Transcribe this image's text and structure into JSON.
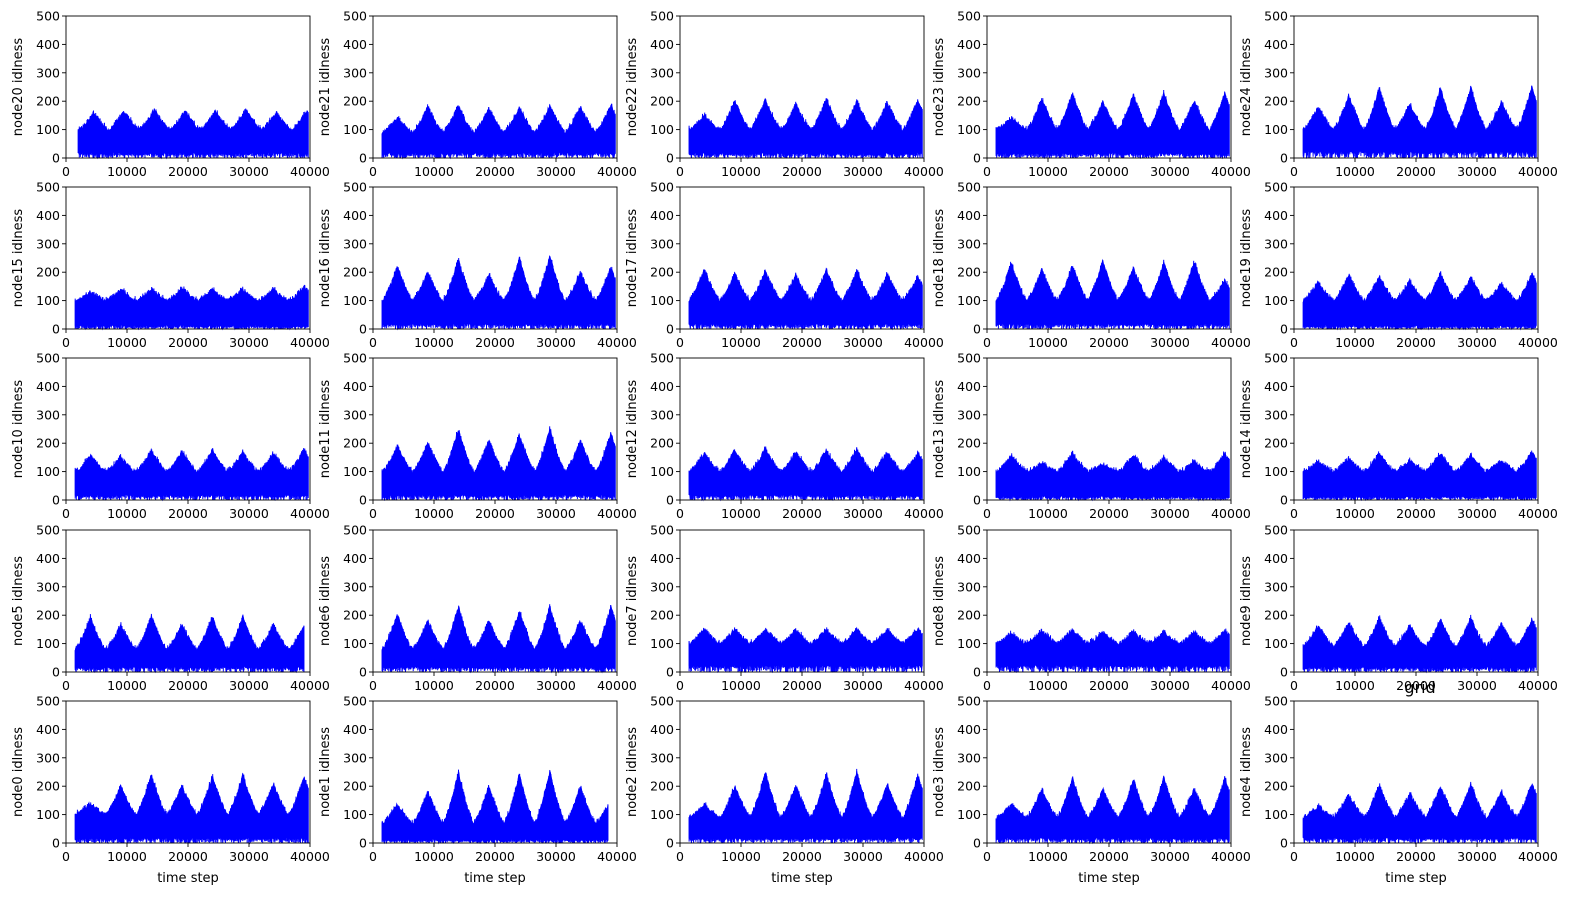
{
  "figure": {
    "rows": 5,
    "cols": 5,
    "overlay_title": "grid",
    "fill_color": "#0000ff",
    "axes_color": "#000000"
  },
  "chart_data": [
    {
      "type": "area",
      "ylabel": "node20 idlness",
      "xlabel": "",
      "xlim": [
        0,
        40000
      ],
      "ylim": [
        0,
        500
      ],
      "xticks": [
        10000,
        20000,
        30000,
        40000
      ],
      "yticks": [
        0,
        100,
        200,
        300,
        400,
        500
      ],
      "x_start": 2000,
      "x_end": 39700,
      "period": 5000,
      "peaks": [
        160,
        165,
        170,
        165,
        165,
        170,
        160,
        165
      ],
      "base_level": 100,
      "low_level": 15
    },
    {
      "type": "area",
      "ylabel": "node21 idlness",
      "xlabel": "",
      "xlim": [
        0,
        40000
      ],
      "ylim": [
        0,
        500
      ],
      "xticks": [
        10000,
        20000,
        30000,
        40000
      ],
      "yticks": [
        0,
        100,
        200,
        300,
        400,
        500
      ],
      "x_start": 1500,
      "x_end": 39700,
      "period": 5000,
      "peaks": [
        140,
        180,
        185,
        175,
        180,
        185,
        180,
        185
      ],
      "base_level": 90,
      "low_level": 15
    },
    {
      "type": "area",
      "ylabel": "node22 idlness",
      "xlabel": "",
      "xlim": [
        0,
        40000
      ],
      "ylim": [
        0,
        500
      ],
      "xticks": [
        10000,
        20000,
        30000,
        40000
      ],
      "yticks": [
        0,
        100,
        200,
        300,
        400,
        500
      ],
      "x_start": 1500,
      "x_end": 39700,
      "period": 5000,
      "peaks": [
        150,
        200,
        205,
        190,
        210,
        200,
        195,
        205
      ],
      "base_level": 100,
      "low_level": 15
    },
    {
      "type": "area",
      "ylabel": "node23 idlness",
      "xlabel": "",
      "xlim": [
        0,
        40000
      ],
      "ylim": [
        0,
        500
      ],
      "xticks": [
        10000,
        20000,
        30000,
        40000
      ],
      "yticks": [
        0,
        100,
        200,
        300,
        400,
        500
      ],
      "x_start": 1500,
      "x_end": 39700,
      "period": 5000,
      "peaks": [
        140,
        210,
        230,
        200,
        225,
        230,
        200,
        230
      ],
      "base_level": 100,
      "low_level": 15
    },
    {
      "type": "area",
      "ylabel": "node24 idlness",
      "xlabel": "",
      "xlim": [
        0,
        40000
      ],
      "ylim": [
        0,
        500
      ],
      "xticks": [
        10000,
        20000,
        30000,
        40000
      ],
      "yticks": [
        0,
        100,
        200,
        300,
        400,
        500
      ],
      "x_start": 1500,
      "x_end": 39700,
      "period": 5000,
      "peaks": [
        180,
        220,
        250,
        190,
        245,
        250,
        200,
        250
      ],
      "base_level": 100,
      "low_level": 20
    },
    {
      "type": "area",
      "ylabel": "node15 idlness",
      "xlabel": "",
      "xlim": [
        0,
        40000
      ],
      "ylim": [
        0,
        500
      ],
      "xticks": [
        10000,
        20000,
        30000,
        40000
      ],
      "yticks": [
        0,
        100,
        200,
        300,
        400,
        500
      ],
      "x_start": 1500,
      "x_end": 39700,
      "period": 5000,
      "peaks": [
        130,
        140,
        140,
        145,
        140,
        140,
        140,
        150
      ],
      "base_level": 100,
      "low_level": 10
    },
    {
      "type": "area",
      "ylabel": "node16 idlness",
      "xlabel": "",
      "xlim": [
        0,
        40000
      ],
      "ylim": [
        0,
        500
      ],
      "xticks": [
        10000,
        20000,
        30000,
        40000
      ],
      "yticks": [
        0,
        100,
        200,
        300,
        400,
        500
      ],
      "x_start": 1500,
      "x_end": 39700,
      "period": 5000,
      "peaks": [
        220,
        200,
        245,
        190,
        250,
        255,
        200,
        215
      ],
      "base_level": 100,
      "low_level": 15
    },
    {
      "type": "area",
      "ylabel": "node17 idlness",
      "xlabel": "",
      "xlim": [
        0,
        40000
      ],
      "ylim": [
        0,
        500
      ],
      "xticks": [
        10000,
        20000,
        30000,
        40000
      ],
      "yticks": [
        0,
        100,
        200,
        300,
        400,
        500
      ],
      "x_start": 1500,
      "x_end": 39700,
      "period": 5000,
      "peaks": [
        210,
        195,
        205,
        190,
        210,
        205,
        195,
        185
      ],
      "base_level": 100,
      "low_level": 15
    },
    {
      "type": "area",
      "ylabel": "node18 idlness",
      "xlabel": "",
      "xlim": [
        0,
        40000
      ],
      "ylim": [
        0,
        500
      ],
      "xticks": [
        10000,
        20000,
        30000,
        40000
      ],
      "yticks": [
        0,
        100,
        200,
        300,
        400,
        500
      ],
      "x_start": 1500,
      "x_end": 39700,
      "period": 5000,
      "peaks": [
        235,
        210,
        225,
        240,
        215,
        235,
        240,
        170
      ],
      "base_level": 100,
      "low_level": 15
    },
    {
      "type": "area",
      "ylabel": "node19 idlness",
      "xlabel": "",
      "xlim": [
        0,
        40000
      ],
      "ylim": [
        0,
        500
      ],
      "xticks": [
        10000,
        20000,
        30000,
        40000
      ],
      "yticks": [
        0,
        100,
        200,
        300,
        400,
        500
      ],
      "x_start": 1500,
      "x_end": 39700,
      "period": 5000,
      "peaks": [
        165,
        190,
        185,
        170,
        195,
        180,
        160,
        195
      ],
      "base_level": 100,
      "low_level": 10
    },
    {
      "type": "area",
      "ylabel": "node10 idlness",
      "xlabel": "",
      "xlim": [
        0,
        40000
      ],
      "ylim": [
        0,
        500
      ],
      "xticks": [
        10000,
        20000,
        30000,
        40000
      ],
      "yticks": [
        0,
        100,
        200,
        300,
        400,
        500
      ],
      "x_start": 1500,
      "x_end": 39700,
      "period": 5000,
      "peaks": [
        160,
        150,
        175,
        170,
        175,
        170,
        165,
        180
      ],
      "base_level": 100,
      "low_level": 15
    },
    {
      "type": "area",
      "ylabel": "node11 idlness",
      "xlabel": "",
      "xlim": [
        0,
        40000
      ],
      "ylim": [
        0,
        500
      ],
      "xticks": [
        10000,
        20000,
        30000,
        40000
      ],
      "yticks": [
        0,
        100,
        200,
        300,
        400,
        500
      ],
      "x_start": 1500,
      "x_end": 39700,
      "period": 5000,
      "peaks": [
        190,
        200,
        250,
        210,
        230,
        250,
        210,
        235
      ],
      "base_level": 100,
      "low_level": 15
    },
    {
      "type": "area",
      "ylabel": "node12 idlness",
      "xlabel": "",
      "xlim": [
        0,
        40000
      ],
      "ylim": [
        0,
        500
      ],
      "xticks": [
        10000,
        20000,
        30000,
        40000
      ],
      "yticks": [
        0,
        100,
        200,
        300,
        400,
        500
      ],
      "x_start": 1500,
      "x_end": 39700,
      "period": 5000,
      "peaks": [
        165,
        175,
        180,
        170,
        175,
        180,
        170,
        165
      ],
      "base_level": 100,
      "low_level": 15
    },
    {
      "type": "area",
      "ylabel": "node13 idlness",
      "xlabel": "",
      "xlim": [
        0,
        40000
      ],
      "ylim": [
        0,
        500
      ],
      "xticks": [
        10000,
        20000,
        30000,
        40000
      ],
      "yticks": [
        0,
        100,
        200,
        300,
        400,
        500
      ],
      "x_start": 1500,
      "x_end": 39700,
      "period": 5000,
      "peaks": [
        155,
        130,
        165,
        125,
        160,
        150,
        135,
        165
      ],
      "base_level": 100,
      "low_level": 10
    },
    {
      "type": "area",
      "ylabel": "node14 idlness",
      "xlabel": "",
      "xlim": [
        0,
        40000
      ],
      "ylim": [
        0,
        500
      ],
      "xticks": [
        10000,
        20000,
        30000,
        40000
      ],
      "yticks": [
        0,
        100,
        200,
        300,
        400,
        500
      ],
      "x_start": 1500,
      "x_end": 39700,
      "period": 5000,
      "peaks": [
        135,
        145,
        165,
        140,
        165,
        160,
        140,
        170
      ],
      "base_level": 100,
      "low_level": 10
    },
    {
      "type": "area",
      "ylabel": "node5 idlness",
      "xlabel": "",
      "xlim": [
        0,
        40000
      ],
      "ylim": [
        0,
        500
      ],
      "xticks": [
        10000,
        20000,
        30000,
        40000
      ],
      "yticks": [
        0,
        100,
        200,
        300,
        400,
        500
      ],
      "x_start": 1500,
      "x_end": 39000,
      "period": 5000,
      "peaks": [
        190,
        165,
        200,
        165,
        195,
        195,
        165,
        160
      ],
      "base_level": 80,
      "low_level": 15
    },
    {
      "type": "area",
      "ylabel": "node6 idlness",
      "xlabel": "",
      "xlim": [
        0,
        40000
      ],
      "ylim": [
        0,
        500
      ],
      "xticks": [
        10000,
        20000,
        30000,
        40000
      ],
      "yticks": [
        0,
        100,
        200,
        300,
        400,
        500
      ],
      "x_start": 1500,
      "x_end": 39700,
      "period": 5000,
      "peaks": [
        200,
        180,
        230,
        180,
        215,
        230,
        180,
        230
      ],
      "base_level": 80,
      "low_level": 15
    },
    {
      "type": "area",
      "ylabel": "node7 idlness",
      "xlabel": "",
      "xlim": [
        0,
        40000
      ],
      "ylim": [
        0,
        500
      ],
      "xticks": [
        10000,
        20000,
        30000,
        40000
      ],
      "yticks": [
        0,
        100,
        200,
        300,
        400,
        500
      ],
      "x_start": 1500,
      "x_end": 39700,
      "period": 5000,
      "peaks": [
        150,
        150,
        150,
        150,
        150,
        150,
        150,
        150
      ],
      "base_level": 100,
      "low_level": 20
    },
    {
      "type": "area",
      "ylabel": "node8 idlness",
      "xlabel": "",
      "xlim": [
        0,
        40000
      ],
      "ylim": [
        0,
        500
      ],
      "xticks": [
        10000,
        20000,
        30000,
        40000
      ],
      "yticks": [
        0,
        100,
        200,
        300,
        400,
        500
      ],
      "x_start": 1500,
      "x_end": 39700,
      "period": 5000,
      "peaks": [
        135,
        145,
        150,
        140,
        145,
        140,
        140,
        145
      ],
      "base_level": 100,
      "low_level": 20
    },
    {
      "type": "area",
      "ylabel": "node9 idlness",
      "xlabel": "",
      "xlim": [
        0,
        40000
      ],
      "ylim": [
        0,
        500
      ],
      "xticks": [
        10000,
        20000,
        30000,
        40000
      ],
      "yticks": [
        0,
        100,
        200,
        300,
        400,
        500
      ],
      "x_start": 1500,
      "x_end": 39700,
      "period": 5000,
      "peaks": [
        165,
        175,
        190,
        165,
        185,
        190,
        170,
        185
      ],
      "base_level": 90,
      "low_level": 15
    },
    {
      "type": "area",
      "ylabel": "node0 idlness",
      "xlabel": "time step",
      "xlim": [
        0,
        40000
      ],
      "ylim": [
        0,
        500
      ],
      "xticks": [
        10000,
        20000,
        30000,
        40000
      ],
      "yticks": [
        0,
        100,
        200,
        300,
        400,
        500
      ],
      "x_start": 1500,
      "x_end": 39700,
      "period": 5000,
      "peaks": [
        140,
        200,
        240,
        200,
        235,
        240,
        205,
        235
      ],
      "base_level": 100,
      "low_level": 15
    },
    {
      "type": "area",
      "ylabel": "node1 idlness",
      "xlabel": "time step",
      "xlim": [
        0,
        40000
      ],
      "ylim": [
        0,
        500
      ],
      "xticks": [
        10000,
        20000,
        30000,
        40000
      ],
      "yticks": [
        0,
        100,
        200,
        300,
        400,
        500
      ],
      "x_start": 1500,
      "x_end": 38500,
      "period": 5000,
      "peaks": [
        135,
        180,
        250,
        200,
        240,
        250,
        200,
        150
      ],
      "base_level": 70,
      "low_level": 10
    },
    {
      "type": "area",
      "ylabel": "node2 idlness",
      "xlabel": "time step",
      "xlim": [
        0,
        40000
      ],
      "ylim": [
        0,
        500
      ],
      "xticks": [
        10000,
        20000,
        30000,
        40000
      ],
      "yticks": [
        0,
        100,
        200,
        300,
        400,
        500
      ],
      "x_start": 1500,
      "x_end": 39700,
      "period": 5000,
      "peaks": [
        135,
        200,
        250,
        200,
        245,
        250,
        205,
        240
      ],
      "base_level": 90,
      "low_level": 15
    },
    {
      "type": "area",
      "ylabel": "node3 idlness",
      "xlabel": "time step",
      "xlim": [
        0,
        40000
      ],
      "ylim": [
        0,
        500
      ],
      "xticks": [
        10000,
        20000,
        30000,
        40000
      ],
      "yticks": [
        0,
        100,
        200,
        300,
        400,
        500
      ],
      "x_start": 1500,
      "x_end": 39700,
      "period": 5000,
      "peaks": [
        135,
        190,
        230,
        190,
        225,
        230,
        190,
        230
      ],
      "base_level": 90,
      "low_level": 15
    },
    {
      "type": "area",
      "ylabel": "node4 idlness",
      "xlabel": "time step",
      "xlim": [
        0,
        40000
      ],
      "ylim": [
        0,
        500
      ],
      "xticks": [
        10000,
        20000,
        30000,
        40000
      ],
      "yticks": [
        0,
        100,
        200,
        300,
        400,
        500
      ],
      "x_start": 1500,
      "x_end": 39700,
      "period": 5000,
      "peaks": [
        130,
        170,
        205,
        175,
        200,
        205,
        180,
        210
      ],
      "base_level": 90,
      "low_level": 15
    }
  ]
}
